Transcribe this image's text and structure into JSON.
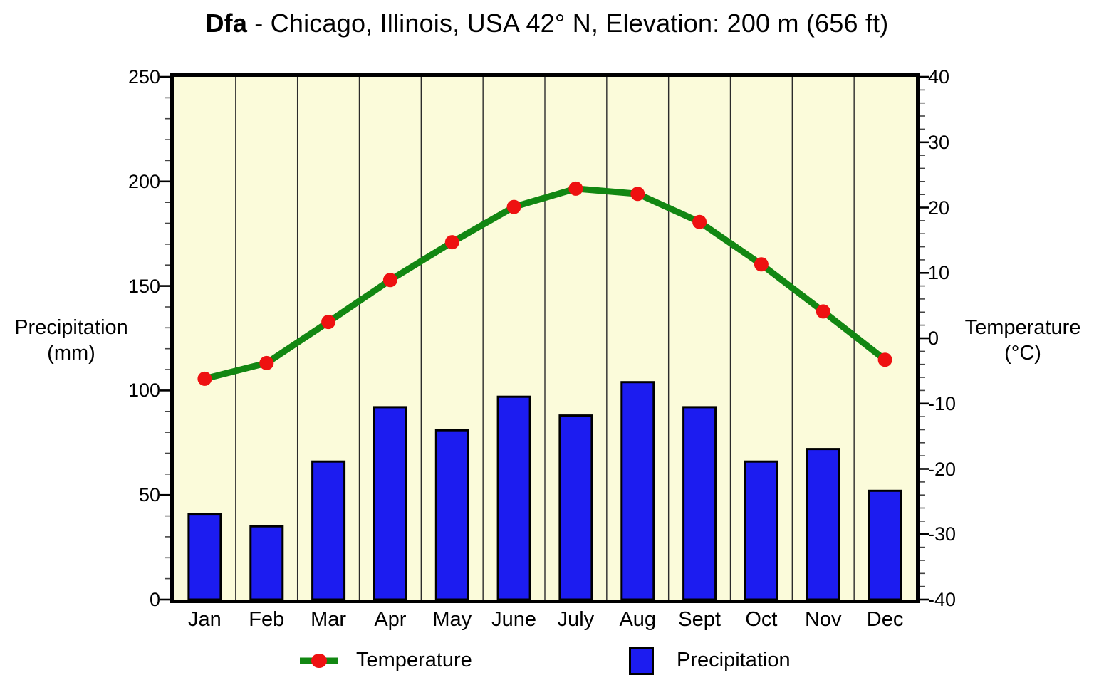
{
  "title": {
    "code": "Dfa",
    "rest": " - Chicago, Illinois, USA 42° N, Elevation: 200 m (656 ft)"
  },
  "left_axis_title": {
    "line1": "Precipitation",
    "line2": "(mm)"
  },
  "right_axis_title": {
    "line1": "Temperature",
    "line2": "(°C)"
  },
  "legend": {
    "temperature": "Temperature",
    "precipitation": "Precipitation"
  },
  "colors": {
    "plot_background": "#fbfbda",
    "bar_fill": "#1c1cf0",
    "bar_border": "#000000",
    "line_green": "#128712",
    "marker_red": "#ee1111",
    "grid": "#2b2b2b",
    "axis": "#000000"
  },
  "chart_data": {
    "type": "bar+line",
    "title": "Dfa - Chicago, Illinois, USA 42° N, Elevation: 200 m (656 ft)",
    "categories": [
      "Jan",
      "Feb",
      "Mar",
      "Apr",
      "May",
      "June",
      "July",
      "Aug",
      "Sept",
      "Oct",
      "Nov",
      "Dec"
    ],
    "series": [
      {
        "name": "Temperature",
        "type": "line",
        "axis": "right",
        "unit": "°C",
        "values": [
          -6.2,
          -3.8,
          2.5,
          8.9,
          14.7,
          20.1,
          22.9,
          22.1,
          17.8,
          11.3,
          4.1,
          -3.3
        ]
      },
      {
        "name": "Precipitation",
        "type": "bar",
        "axis": "left",
        "unit": "mm",
        "values": [
          41,
          35,
          66,
          92,
          81,
          97,
          88,
          104,
          92,
          66,
          72,
          52
        ]
      }
    ],
    "left_axis": {
      "label": "Precipitation (mm)",
      "range": [
        0,
        250
      ],
      "major_ticks": [
        0,
        50,
        100,
        150,
        200,
        250
      ],
      "minor_step": 10
    },
    "right_axis": {
      "label": "Temperature (°C)",
      "range": [
        -40,
        40
      ],
      "major_ticks": [
        -40,
        -30,
        -20,
        -10,
        0,
        10,
        20,
        30,
        40
      ],
      "minor_step": 2
    },
    "grid": "vertical lines at month boundaries",
    "legend_position": "bottom"
  }
}
